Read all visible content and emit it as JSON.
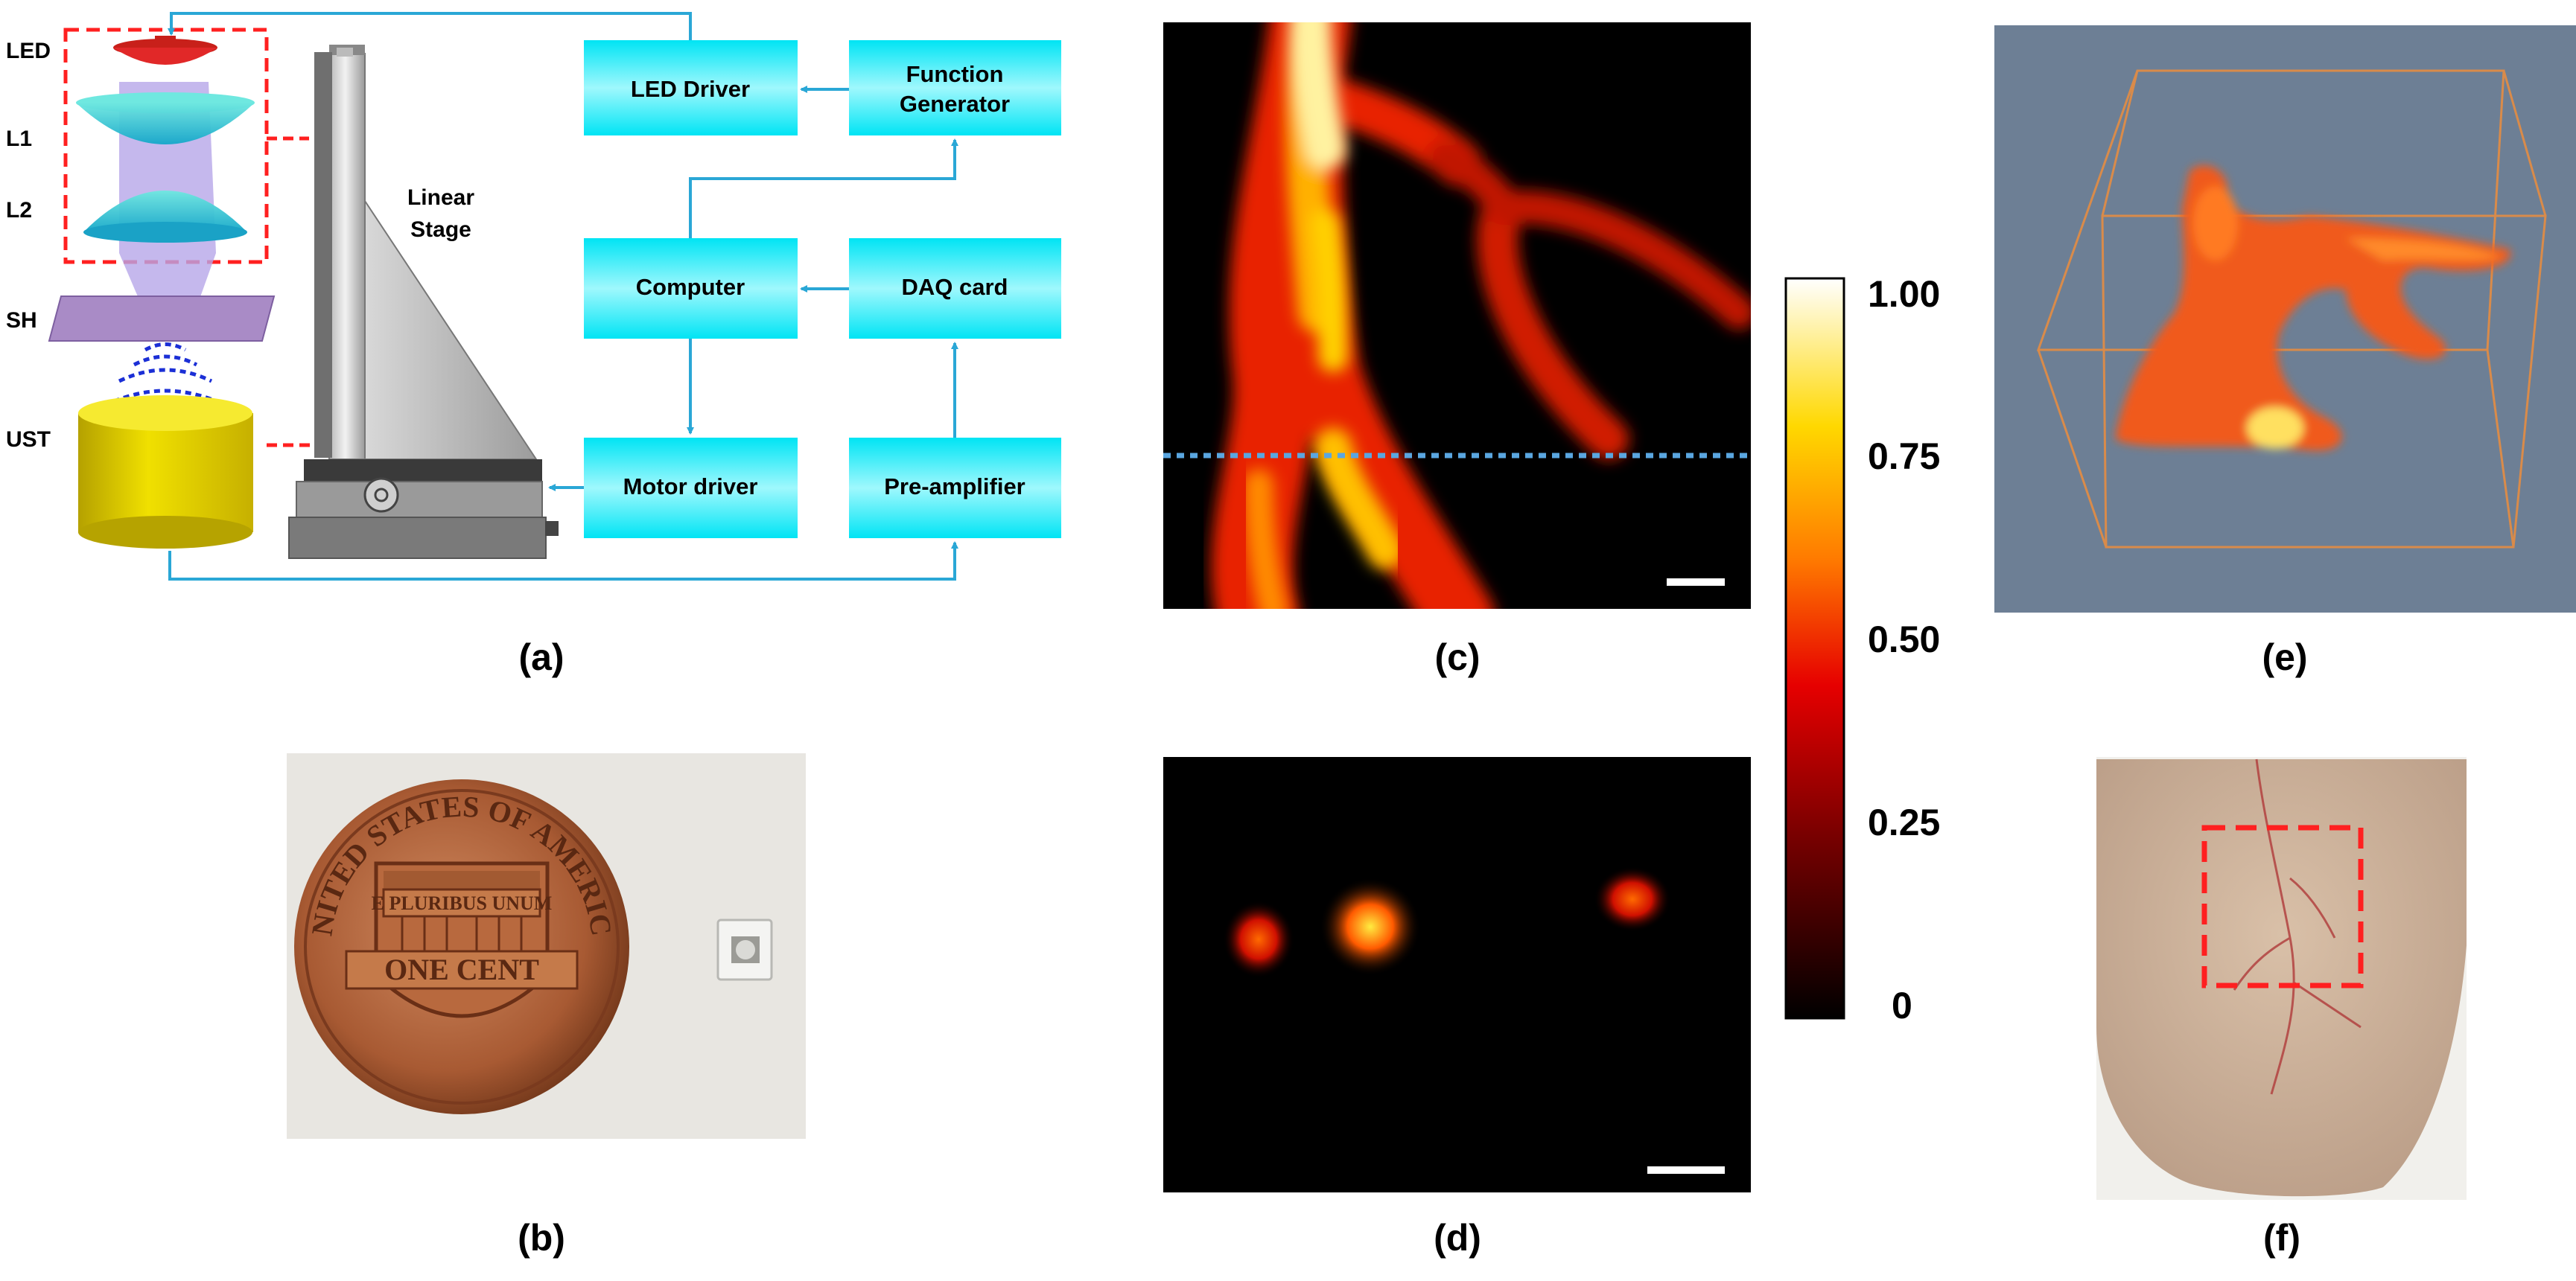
{
  "panels": {
    "a": "(a)",
    "b": "(b)",
    "c": "(c)",
    "d": "(d)",
    "e": "(e)",
    "f": "(f)"
  },
  "setup": {
    "labels": {
      "led": "LED",
      "l1": "L1",
      "l2": "L2",
      "sh": "SH",
      "ust": "UST"
    },
    "stage": {
      "line1": "Linear",
      "line2": "Stage"
    }
  },
  "blocks": {
    "led_driver": "LED Driver",
    "function_generator": {
      "line1": "Function",
      "line2": "Generator"
    },
    "computer": "Computer",
    "daq_card": "DAQ card",
    "motor_driver": "Motor driver",
    "pre_amplifier": "Pre-amplifier"
  },
  "coin": {
    "top_text": "UNITED STATES OF AMERICA",
    "banner": "E PLURIBUS UNUM",
    "denomination": "ONE CENT"
  },
  "colorbar": {
    "ticks": [
      "1.00",
      "0.75",
      "0.50",
      "0.25",
      "0"
    ]
  },
  "colors": {
    "block_fill_mid": "#00e8f8",
    "arrow": "#2aa7d6",
    "red_dash": "#ff2020",
    "vol_bg": "#6d7f95",
    "dotted_line": "#5aa6e0"
  },
  "icons": [
    "led-icon",
    "lens-icon",
    "scaling-head-icon",
    "ultrasound-transducer-icon",
    "linear-stage-icon"
  ]
}
